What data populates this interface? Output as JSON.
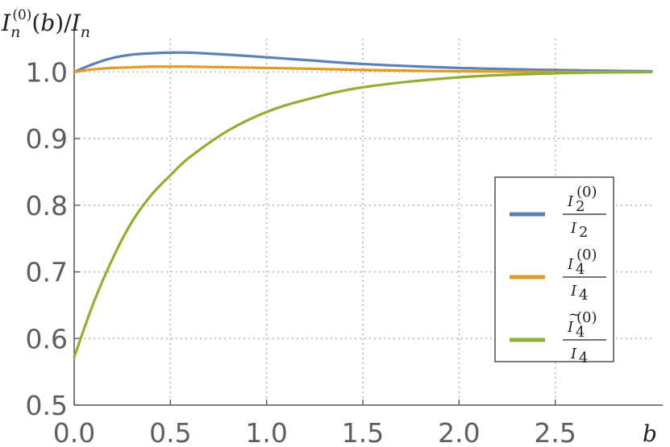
{
  "chart_data": {
    "type": "line",
    "title": "",
    "ylabel": "I_n^(0)(b)/I_n",
    "ylabel_parts": {
      "base": "I",
      "sub": "n",
      "sup": "(0)",
      "rest": "(b)/",
      "base2": "I",
      "sub2": "n"
    },
    "xlabel": "b",
    "xlim": [
      0,
      3
    ],
    "ylim": [
      0.5,
      1.05
    ],
    "grid": true,
    "legend_position": "right",
    "x_ticks": [
      0.0,
      0.5,
      1.0,
      1.5,
      2.0,
      2.5
    ],
    "x_tick_labels": [
      "0.0",
      "0.5",
      "1.0",
      "1.5",
      "2.0",
      "2.5"
    ],
    "y_ticks": [
      0.5,
      0.6,
      0.7,
      0.8,
      0.9,
      1.0
    ],
    "y_tick_labels": [
      "0.5",
      "0.6",
      "0.7",
      "0.8",
      "0.9",
      "1.0"
    ],
    "x": [
      0.0,
      0.1,
      0.2,
      0.3,
      0.4,
      0.5,
      0.6,
      0.8,
      1.0,
      1.2,
      1.5,
      2.0,
      2.5,
      3.0
    ],
    "series": [
      {
        "name": "I_2^(0)/I_2",
        "legend": {
          "num_base": "I",
          "num_sub": "2",
          "num_sup": "(0)",
          "num_tilde": false,
          "den_base": "I",
          "den_sub": "2"
        },
        "color": "#5e81b5",
        "values": [
          1.0,
          1.012,
          1.021,
          1.026,
          1.028,
          1.029,
          1.029,
          1.026,
          1.022,
          1.018,
          1.012,
          1.006,
          1.003,
          1.001
        ]
      },
      {
        "name": "I_4^(0)/I_4",
        "legend": {
          "num_base": "I",
          "num_sub": "4",
          "num_sup": "(0)",
          "num_tilde": false,
          "den_base": "I",
          "den_sub": "4"
        },
        "color": "#e19c24",
        "values": [
          1.0,
          1.004,
          1.006,
          1.007,
          1.008,
          1.008,
          1.008,
          1.007,
          1.006,
          1.005,
          1.003,
          1.001,
          1.0,
          1.0
        ]
      },
      {
        "name": "Ĩ_4^(0)/I_4",
        "legend": {
          "num_base": "I",
          "num_sub": "4",
          "num_sup": "(0)",
          "num_tilde": true,
          "den_base": "I",
          "den_sub": "4"
        },
        "color": "#8fb032",
        "values": [
          0.572,
          0.653,
          0.72,
          0.775,
          0.815,
          0.845,
          0.872,
          0.912,
          0.94,
          0.958,
          0.977,
          0.992,
          0.998,
          1.0
        ]
      }
    ]
  }
}
